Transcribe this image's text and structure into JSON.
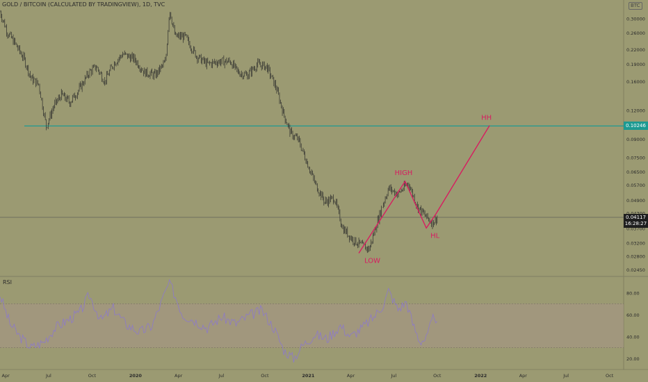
{
  "header": {
    "title": "GOLD / BITCOIN (CALCULATED BY TRADINGVIEW), 1D, TVC",
    "currency_badge": "BTC"
  },
  "colors": {
    "background": "#9b9a72",
    "candle": "#2b2b2b",
    "horizontal_line": "#1d9a92",
    "annotation": "#d81b60",
    "rsi_line": "#8e7cc3",
    "rsi_band": "#a59687"
  },
  "price_tag": {
    "price": "0.04117",
    "time": "16:28:27"
  },
  "hline_tag": "0.10246",
  "rsi_label": "RSI",
  "chart_data": [
    {
      "type": "line",
      "title": "GOLD / BITCOIN (CALCULATED BY TRADINGVIEW), 1D, TVC",
      "scale": "log",
      "ylim": [
        0.023,
        0.36
      ],
      "y_ticks": [
        "0.30000",
        "0.26000",
        "0.22000",
        "0.19000",
        "0.16000",
        "0.12000",
        "0.09000",
        "0.07500",
        "0.06500",
        "0.05700",
        "0.04900",
        "0.04300",
        "0.03700",
        "0.03200",
        "0.02800",
        "0.02450"
      ],
      "x_ticks": [
        "Apr",
        "Jul",
        "Oct",
        "2020",
        "Apr",
        "Jul",
        "Oct",
        "2021",
        "Apr",
        "Jul",
        "Oct",
        "2022",
        "Apr",
        "Jul",
        "Oct"
      ],
      "x_range": [
        "2019-03-20",
        "2022-10-31"
      ],
      "series": [
        {
          "points": [
            [
              "2019-03-20",
              0.32
            ],
            [
              "2019-04-05",
              0.26
            ],
            [
              "2019-04-20",
              0.235
            ],
            [
              "2019-05-10",
              0.2
            ],
            [
              "2019-05-25",
              0.165
            ],
            [
              "2019-06-10",
              0.155
            ],
            [
              "2019-06-26",
              0.102
            ],
            [
              "2019-07-12",
              0.125
            ],
            [
              "2019-07-28",
              0.14
            ],
            [
              "2019-08-15",
              0.13
            ],
            [
              "2019-09-01",
              0.145
            ],
            [
              "2019-09-25",
              0.175
            ],
            [
              "2019-10-10",
              0.185
            ],
            [
              "2019-10-28",
              0.16
            ],
            [
              "2019-11-15",
              0.19
            ],
            [
              "2019-12-05",
              0.21
            ],
            [
              "2019-12-30",
              0.2
            ],
            [
              "2020-01-20",
              0.175
            ],
            [
              "2020-02-12",
              0.17
            ],
            [
              "2020-03-05",
              0.195
            ],
            [
              "2020-03-13",
              0.33
            ],
            [
              "2020-03-25",
              0.25
            ],
            [
              "2020-04-15",
              0.25
            ],
            [
              "2020-05-10",
              0.205
            ],
            [
              "2020-06-01",
              0.19
            ],
            [
              "2020-06-25",
              0.195
            ],
            [
              "2020-07-20",
              0.195
            ],
            [
              "2020-08-05",
              0.175
            ],
            [
              "2020-08-25",
              0.17
            ],
            [
              "2020-09-15",
              0.19
            ],
            [
              "2020-10-05",
              0.185
            ],
            [
              "2020-10-25",
              0.15
            ],
            [
              "2020-11-10",
              0.115
            ],
            [
              "2020-11-25",
              0.095
            ],
            [
              "2020-12-10",
              0.09
            ],
            [
              "2020-12-31",
              0.07
            ],
            [
              "2021-01-15",
              0.058
            ],
            [
              "2021-02-05",
              0.048
            ],
            [
              "2021-02-25",
              0.05
            ],
            [
              "2021-03-15",
              0.037
            ],
            [
              "2021-04-05",
              0.033
            ],
            [
              "2021-04-25",
              0.031
            ],
            [
              "2021-05-10",
              0.03
            ],
            [
              "2021-05-25",
              0.038
            ],
            [
              "2021-06-05",
              0.045
            ],
            [
              "2021-06-20",
              0.055
            ],
            [
              "2021-07-10",
              0.052
            ],
            [
              "2021-08-01",
              0.058
            ],
            [
              "2021-08-20",
              0.046
            ],
            [
              "2021-09-05",
              0.042
            ],
            [
              "2021-09-20",
              0.039
            ],
            [
              "2021-10-01",
              0.041
            ]
          ]
        }
      ],
      "horizontal_line": {
        "value": 0.10246
      },
      "current_price": {
        "value": 0.04117
      },
      "annotations": [
        {
          "label": "LOW",
          "date": "2021-04-18",
          "value": 0.0288
        },
        {
          "label": "HIGH",
          "date": "2021-07-25",
          "value": 0.059
        },
        {
          "label": "HL",
          "date": "2021-09-08",
          "value": 0.037
        },
        {
          "label": "HH",
          "date": "2022-01-20",
          "value": 0.103
        }
      ],
      "projection_path": [
        [
          "2021-04-18",
          0.0288
        ],
        [
          "2021-07-25",
          0.059
        ],
        [
          "2021-09-08",
          0.037
        ],
        [
          "2021-09-28",
          0.0425
        ],
        [
          "2022-01-20",
          0.103
        ]
      ]
    },
    {
      "type": "line",
      "title": "RSI",
      "ylim": [
        10,
        95
      ],
      "y_ticks": [
        "80.00",
        "60.00",
        "40.00",
        "20.00"
      ],
      "band": [
        30,
        70
      ],
      "series": [
        {
          "points": [
            [
              "2019-03-20",
              78
            ],
            [
              "2019-04-10",
              52
            ],
            [
              "2019-05-01",
              40
            ],
            [
              "2019-05-25",
              30
            ],
            [
              "2019-06-20",
              35
            ],
            [
              "2019-07-15",
              48
            ],
            [
              "2019-08-10",
              55
            ],
            [
              "2019-09-05",
              62
            ],
            [
              "2019-09-25",
              78
            ],
            [
              "2019-10-20",
              55
            ],
            [
              "2019-11-15",
              66
            ],
            [
              "2019-12-10",
              52
            ],
            [
              "2020-01-10",
              44
            ],
            [
              "2020-02-05",
              50
            ],
            [
              "2020-03-13",
              90
            ],
            [
              "2020-04-10",
              60
            ],
            [
              "2020-05-05",
              55
            ],
            [
              "2020-06-01",
              48
            ],
            [
              "2020-07-01",
              58
            ],
            [
              "2020-08-01",
              52
            ],
            [
              "2020-09-01",
              60
            ],
            [
              "2020-09-25",
              64
            ],
            [
              "2020-10-20",
              48
            ],
            [
              "2020-11-10",
              28
            ],
            [
              "2020-12-01",
              20
            ],
            [
              "2020-12-20",
              32
            ],
            [
              "2021-01-15",
              42
            ],
            [
              "2021-02-10",
              38
            ],
            [
              "2021-03-10",
              50
            ],
            [
              "2021-04-01",
              40
            ],
            [
              "2021-04-25",
              48
            ],
            [
              "2021-05-20",
              58
            ],
            [
              "2021-06-10",
              70
            ],
            [
              "2021-06-20",
              82
            ],
            [
              "2021-07-10",
              65
            ],
            [
              "2021-07-28",
              72
            ],
            [
              "2021-08-10",
              52
            ],
            [
              "2021-08-25",
              36
            ],
            [
              "2021-09-08",
              38
            ],
            [
              "2021-09-25",
              60
            ],
            [
              "2021-10-01",
              54
            ]
          ]
        }
      ]
    }
  ]
}
